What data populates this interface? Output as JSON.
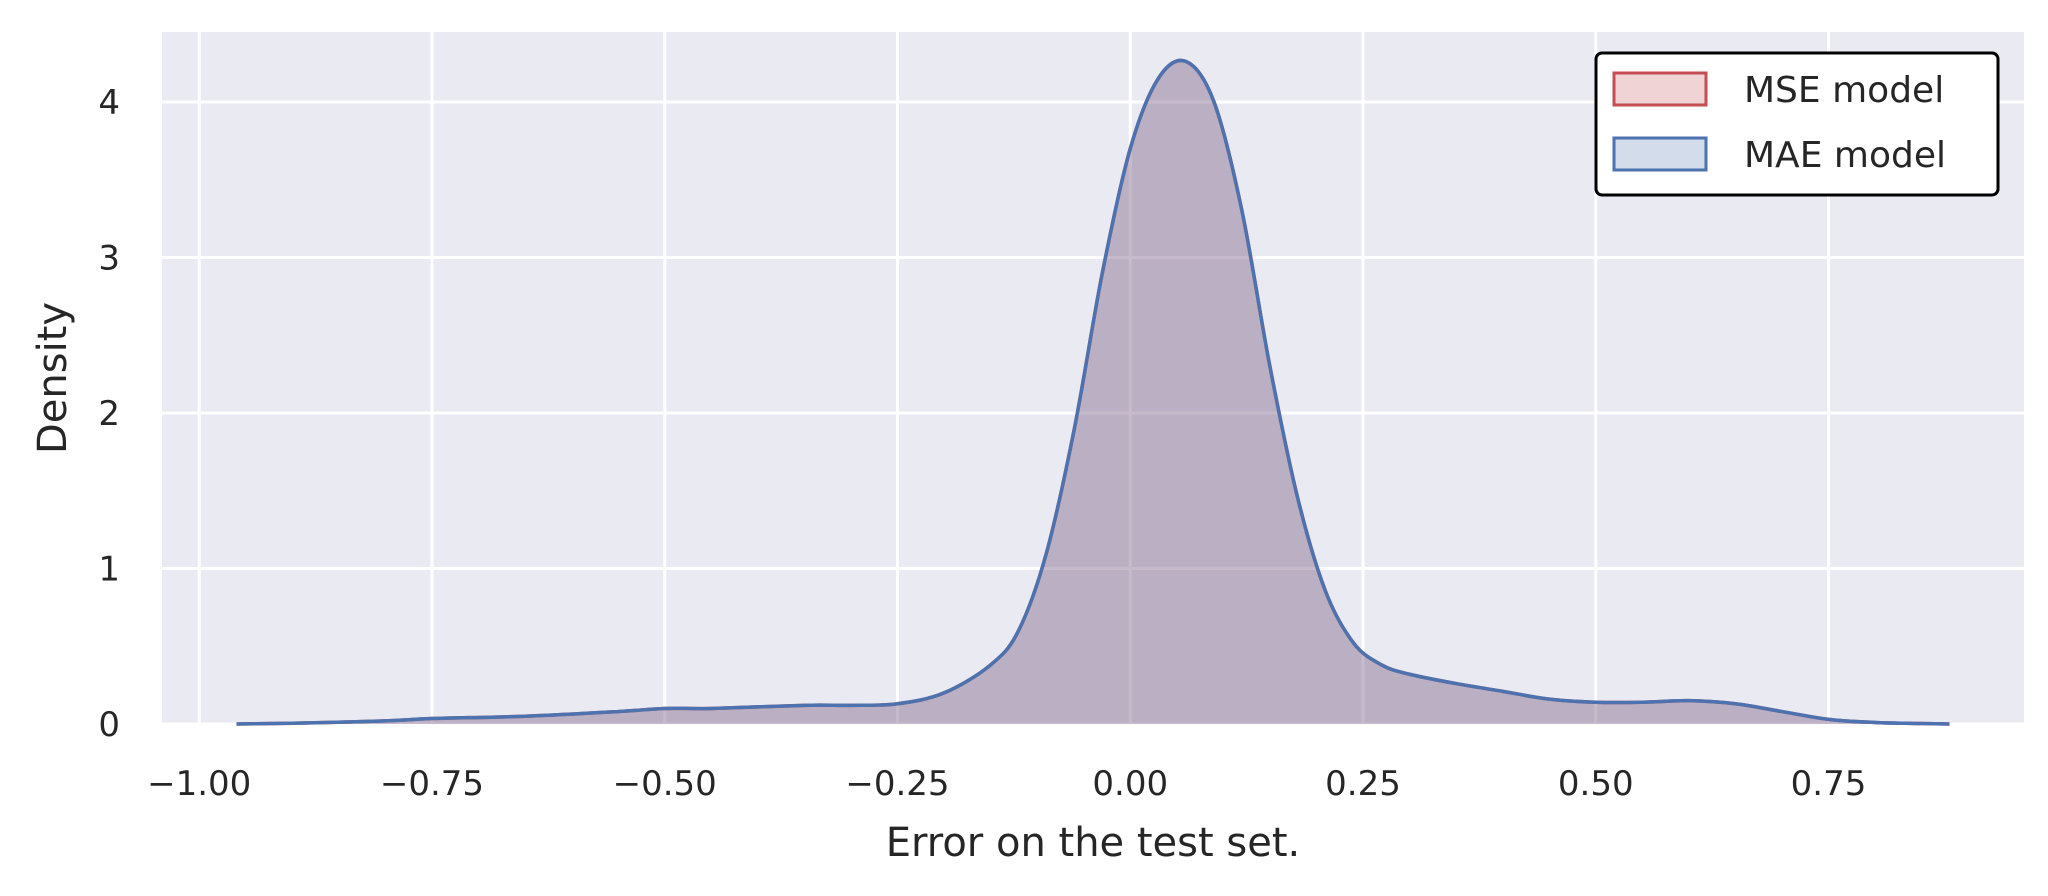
{
  "chart_data": {
    "type": "area",
    "title": "",
    "xlabel": "Error on the test set.",
    "ylabel": "Density",
    "xlim": [
      -1.04,
      0.96
    ],
    "ylim": [
      0,
      4.45
    ],
    "x_ticks": [
      -1.0,
      -0.75,
      -0.5,
      -0.25,
      0.0,
      0.25,
      0.5,
      0.75
    ],
    "x_tick_labels": [
      "−1.00",
      "−0.75",
      "−0.50",
      "−0.25",
      "0.00",
      "0.25",
      "0.50",
      "0.75"
    ],
    "y_ticks": [
      0,
      1,
      2,
      3,
      4
    ],
    "y_tick_labels": [
      "0",
      "1",
      "2",
      "3",
      "4"
    ],
    "grid": true,
    "background_color": "#eaeaf2",
    "legend": {
      "position": "top-right"
    },
    "series": [
      {
        "name": "MSE model",
        "stroke_color": "#c44e52",
        "fill_color": "#c44e52",
        "x": [
          -0.96,
          -0.9,
          -0.8,
          -0.75,
          -0.65,
          -0.55,
          -0.5,
          -0.45,
          -0.35,
          -0.3,
          -0.25,
          -0.2,
          -0.15,
          -0.12,
          -0.09,
          -0.06,
          -0.03,
          0.0,
          0.03,
          0.06,
          0.09,
          0.12,
          0.15,
          0.18,
          0.21,
          0.24,
          0.27,
          0.3,
          0.35,
          0.4,
          0.45,
          0.5,
          0.55,
          0.6,
          0.65,
          0.7,
          0.75,
          0.8,
          0.85,
          0.88
        ],
        "y": [
          0.0,
          0.005,
          0.02,
          0.035,
          0.05,
          0.08,
          0.1,
          0.1,
          0.12,
          0.12,
          0.13,
          0.2,
          0.38,
          0.6,
          1.1,
          1.9,
          2.9,
          3.7,
          4.15,
          4.26,
          4.0,
          3.3,
          2.3,
          1.45,
          0.85,
          0.52,
          0.38,
          0.32,
          0.26,
          0.21,
          0.16,
          0.14,
          0.14,
          0.15,
          0.13,
          0.08,
          0.03,
          0.01,
          0.003,
          0.0
        ]
      },
      {
        "name": "MAE model",
        "stroke_color": "#4c72b0",
        "fill_color": "#4c72b0",
        "x": [
          -0.96,
          -0.9,
          -0.8,
          -0.75,
          -0.65,
          -0.55,
          -0.5,
          -0.45,
          -0.35,
          -0.3,
          -0.25,
          -0.2,
          -0.15,
          -0.12,
          -0.09,
          -0.06,
          -0.03,
          0.0,
          0.03,
          0.06,
          0.09,
          0.12,
          0.15,
          0.18,
          0.21,
          0.24,
          0.27,
          0.3,
          0.35,
          0.4,
          0.45,
          0.5,
          0.55,
          0.6,
          0.65,
          0.7,
          0.75,
          0.8,
          0.85,
          0.88
        ],
        "y": [
          0.0,
          0.005,
          0.02,
          0.035,
          0.05,
          0.08,
          0.1,
          0.1,
          0.12,
          0.12,
          0.13,
          0.2,
          0.38,
          0.6,
          1.1,
          1.9,
          2.9,
          3.7,
          4.15,
          4.26,
          4.0,
          3.3,
          2.3,
          1.45,
          0.85,
          0.52,
          0.38,
          0.32,
          0.26,
          0.21,
          0.16,
          0.14,
          0.14,
          0.15,
          0.13,
          0.08,
          0.03,
          0.01,
          0.003,
          0.0
        ]
      }
    ]
  }
}
